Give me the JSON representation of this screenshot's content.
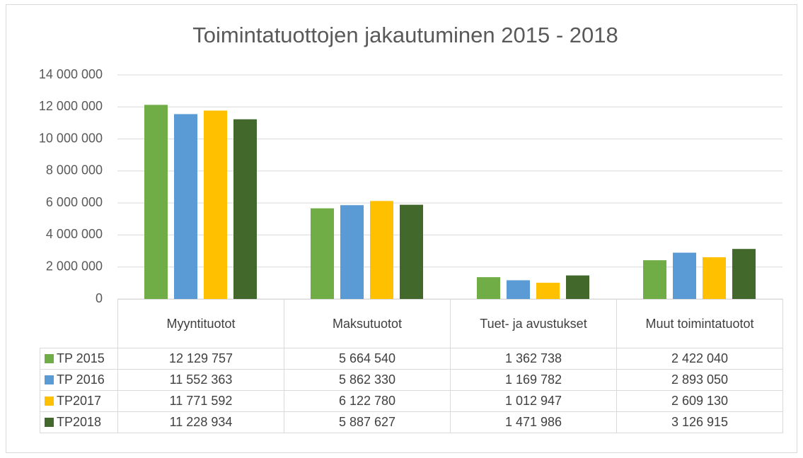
{
  "chart_data": {
    "type": "bar",
    "title": "Toimintatuottojen jakautuminen 2015 - 2018",
    "categories": [
      "Myyntituotot",
      "Maksutuotot",
      "Tuet- ja avustukset",
      "Muut toimintatuotot"
    ],
    "series": [
      {
        "name": "TP 2015",
        "color": "#70ad47",
        "values": [
          12129757,
          5664540,
          1362738,
          2422040
        ],
        "value_labels": [
          "12 129 757",
          "5 664 540",
          "1 362 738",
          "2 422 040"
        ]
      },
      {
        "name": "TP 2016",
        "color": "#5b9bd5",
        "values": [
          11552363,
          5862330,
          1169782,
          2893050
        ],
        "value_labels": [
          "11 552 363",
          "5 862 330",
          "1 169 782",
          "2 893 050"
        ]
      },
      {
        "name": "TP2017",
        "color": "#ffc000",
        "values": [
          11771592,
          6122780,
          1012947,
          2609130
        ],
        "value_labels": [
          "11 771 592",
          "6 122 780",
          "1 012 947",
          "2 609 130"
        ]
      },
      {
        "name": "TP2018",
        "color": "#43682b",
        "values": [
          11228934,
          5887627,
          1471986,
          3126915
        ],
        "value_labels": [
          "11 228 934",
          "5 887 627",
          "1 471 986",
          "3 126 915"
        ]
      }
    ],
    "ylim": [
      0,
      14000000
    ],
    "yticks": [
      0,
      {
        "value": 2000000,
        "label": "2 000 000"
      },
      {
        "value": 4000000,
        "label": "4 000 000"
      },
      {
        "value": 6000000,
        "label": "6 000 000"
      },
      {
        "value": 8000000,
        "label": "8 000 000"
      },
      {
        "value": 10000000,
        "label": "10 000 000"
      },
      {
        "value": 12000000,
        "label": "12 000 000"
      },
      {
        "value": 14000000,
        "label": "14 000 000"
      }
    ],
    "grid": true,
    "legend": "table"
  }
}
